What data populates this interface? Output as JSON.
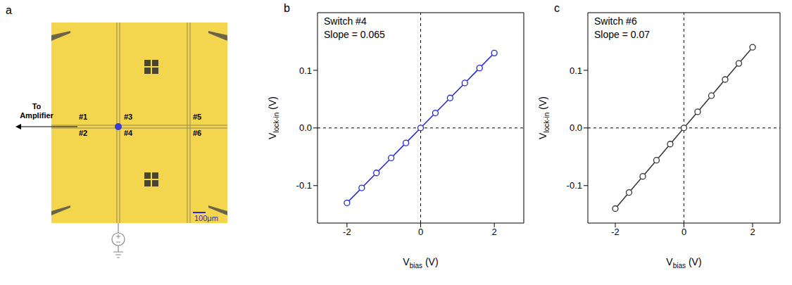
{
  "panel_a": {
    "label": "a",
    "type": "diagram",
    "arrow_label": "To Amplifier",
    "switches": [
      "#1",
      "#2",
      "#3",
      "#4",
      "#5",
      "#6"
    ],
    "scale_bar": "100μm"
  },
  "chart_data": [
    {
      "label": "b",
      "type": "line",
      "annotations": [
        "Switch #4",
        "Slope = 0.065"
      ],
      "x": [
        -2,
        -1.6,
        -1.2,
        -0.8,
        -0.4,
        0,
        0.4,
        0.8,
        1.2,
        1.6,
        2
      ],
      "values": [
        -0.13,
        -0.104,
        -0.078,
        -0.052,
        -0.026,
        0,
        0.026,
        0.052,
        0.078,
        0.104,
        0.13
      ],
      "color": "#2323d6",
      "marker": "o",
      "xlabel": {
        "text": "V",
        "subscript": "bias",
        "suffix": " (V)"
      },
      "ylabel": {
        "text": "V",
        "subscript": "lock-in",
        "suffix": " (V)"
      },
      "xlim": [
        -2.8,
        2.8
      ],
      "ylim": [
        -0.165,
        0.2
      ],
      "xticks": [
        -2,
        0,
        2
      ],
      "yticks": [
        -0.1,
        {
          "value": 0,
          "label": "0.0"
        },
        0.1
      ],
      "reference_lines": {
        "x": 0,
        "y": 0
      }
    },
    {
      "label": "c",
      "type": "line",
      "annotations": [
        "Switch #6",
        "Slope = 0.07"
      ],
      "x": [
        -2,
        -1.6,
        -1.2,
        -0.8,
        -0.4,
        0,
        0.4,
        0.8,
        1.2,
        1.6,
        2
      ],
      "values": [
        -0.14,
        -0.112,
        -0.084,
        -0.056,
        -0.028,
        0,
        0.028,
        0.056,
        0.084,
        0.112,
        0.14
      ],
      "color": "#333333",
      "marker": "o",
      "xlabel": {
        "text": "V",
        "subscript": "bias",
        "suffix": " (V)"
      },
      "ylabel": {
        "text": "V",
        "subscript": "lock-in",
        "suffix": " (V)"
      },
      "xlim": [
        -2.8,
        2.8
      ],
      "ylim": [
        -0.165,
        0.2
      ],
      "xticks": [
        -2,
        0,
        2
      ],
      "yticks": [
        -0.1,
        {
          "value": 0,
          "label": "0.0"
        },
        0.1
      ],
      "reference_lines": {
        "x": 0,
        "y": 0
      }
    }
  ]
}
